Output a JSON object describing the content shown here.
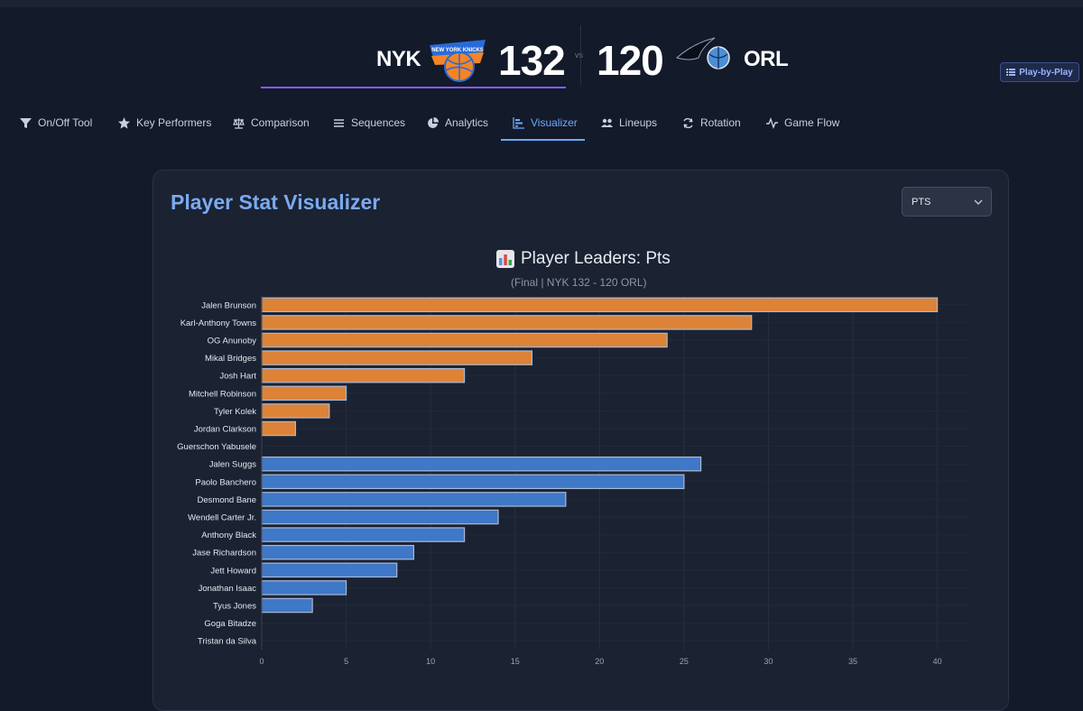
{
  "header": {
    "home_abbr": "NYK",
    "home_score": "132",
    "vs": "vs",
    "away_score": "120",
    "away_abbr": "ORL",
    "home_logo_text": "NEW YORK KNICKS",
    "playbyplay_label": "Play-by-Play"
  },
  "tabs": [
    {
      "label": "On/Off Tool",
      "icon": "filter-icon"
    },
    {
      "label": "Key Performers",
      "icon": "star-icon"
    },
    {
      "label": "Comparison",
      "icon": "scale-icon"
    },
    {
      "label": "Sequences",
      "icon": "list-icon"
    },
    {
      "label": "Analytics",
      "icon": "pie-chart-icon"
    },
    {
      "label": "Visualizer",
      "icon": "bar-chart-icon",
      "active": true
    },
    {
      "label": "Lineups",
      "icon": "users-icon"
    },
    {
      "label": "Rotation",
      "icon": "rotate-icon"
    },
    {
      "label": "Game Flow",
      "icon": "pulse-icon"
    }
  ],
  "card": {
    "title": "Player Stat Visualizer",
    "stat_select": "PTS"
  },
  "colors": {
    "home": "#dd8337",
    "away": "#3f78c6",
    "accent": "#6ea8fe",
    "underline": "#8b5cf6"
  },
  "chart_data": {
    "type": "bar",
    "orientation": "horizontal",
    "title": "Player Leaders: Pts",
    "subtitle": "(Final | NYK 132 - 120 ORL)",
    "xlim": [
      0,
      42
    ],
    "x_ticks": [
      0,
      5,
      10,
      15,
      20,
      25,
      30,
      35,
      40
    ],
    "series": [
      {
        "name": "NYK",
        "categories": [
          "Jalen Brunson",
          "Karl-Anthony Towns",
          "OG Anunoby",
          "Mikal Bridges",
          "Josh Hart",
          "Mitchell Robinson",
          "Tyler Kolek",
          "Jordan Clarkson",
          "Guerschon Yabusele"
        ],
        "values": [
          40,
          29,
          24,
          16,
          12,
          5,
          4,
          2,
          0
        ]
      },
      {
        "name": "ORL",
        "categories": [
          "Jalen Suggs",
          "Paolo Banchero",
          "Desmond Bane",
          "Wendell Carter Jr.",
          "Anthony Black",
          "Jase Richardson",
          "Jett Howard",
          "Jonathan Isaac",
          "Tyus Jones",
          "Goga Bitadze",
          "Tristan da Silva"
        ],
        "values": [
          26,
          25,
          18,
          14,
          12,
          9,
          8,
          5,
          3,
          0,
          0
        ]
      }
    ]
  }
}
